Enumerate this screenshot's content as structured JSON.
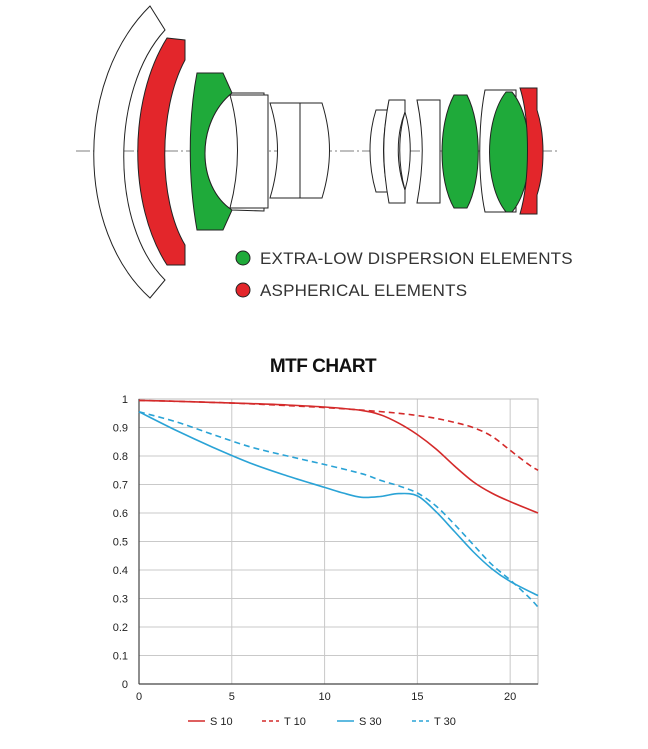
{
  "diagram": {
    "legend": [
      {
        "label": "EXTRA-LOW DISPERSION ELEMENTS",
        "color": "#1faa3a"
      },
      {
        "label": "ASPHERICAL ELEMENTS",
        "color": "#e3262b"
      }
    ],
    "colors": {
      "ed": "#1faa3a",
      "aspherical": "#e3262b",
      "outline": "#222222"
    }
  },
  "chart_data": {
    "type": "line",
    "title": "MTF CHART",
    "xlabel": "",
    "ylabel": "",
    "xlim": [
      0,
      21.5
    ],
    "ylim": [
      0,
      1
    ],
    "x_ticks": [
      0,
      5,
      10,
      15,
      20
    ],
    "y_ticks": [
      0,
      0.1,
      0.2,
      0.3,
      0.4,
      0.5,
      0.6,
      0.7,
      0.8,
      0.9,
      1
    ],
    "y_tick_labels": [
      "0",
      "0.1",
      "0.2",
      "0.3",
      "0.4",
      "0.5",
      "0.6",
      "0.7",
      "0.8",
      "0.9",
      "1"
    ],
    "grid": true,
    "legend_position": "bottom",
    "series": [
      {
        "name": "S 10",
        "color": "#d42a2a",
        "dash": false,
        "x": [
          0,
          2,
          4,
          6,
          8,
          10,
          12,
          13,
          14,
          15,
          16,
          17,
          18,
          19,
          20,
          21.5
        ],
        "y": [
          0.995,
          0.992,
          0.988,
          0.984,
          0.979,
          0.972,
          0.96,
          0.945,
          0.915,
          0.875,
          0.825,
          0.765,
          0.71,
          0.67,
          0.64,
          0.6
        ]
      },
      {
        "name": "T 10",
        "color": "#d42a2a",
        "dash": true,
        "x": [
          0,
          2,
          4,
          6,
          8,
          10,
          12,
          14,
          15,
          16,
          17,
          18,
          19,
          20,
          21,
          21.5
        ],
        "y": [
          0.995,
          0.992,
          0.988,
          0.983,
          0.977,
          0.97,
          0.961,
          0.95,
          0.942,
          0.932,
          0.918,
          0.9,
          0.87,
          0.82,
          0.77,
          0.75
        ]
      },
      {
        "name": "S 30",
        "color": "#2aa3d6",
        "dash": false,
        "x": [
          0,
          2,
          4,
          6,
          8,
          10,
          11,
          12,
          13,
          14,
          15,
          16,
          17,
          18,
          19,
          20,
          21.5
        ],
        "y": [
          0.955,
          0.89,
          0.83,
          0.775,
          0.73,
          0.69,
          0.67,
          0.655,
          0.658,
          0.668,
          0.66,
          0.605,
          0.535,
          0.465,
          0.405,
          0.36,
          0.31
        ]
      },
      {
        "name": "T 30",
        "color": "#2aa3d6",
        "dash": true,
        "x": [
          0,
          2,
          4,
          6,
          8,
          10,
          12,
          13,
          14,
          15,
          16,
          17,
          18,
          19,
          20,
          21,
          21.5
        ],
        "y": [
          0.955,
          0.92,
          0.875,
          0.832,
          0.8,
          0.77,
          0.738,
          0.715,
          0.695,
          0.67,
          0.625,
          0.56,
          0.49,
          0.42,
          0.365,
          0.305,
          0.27
        ]
      }
    ]
  }
}
